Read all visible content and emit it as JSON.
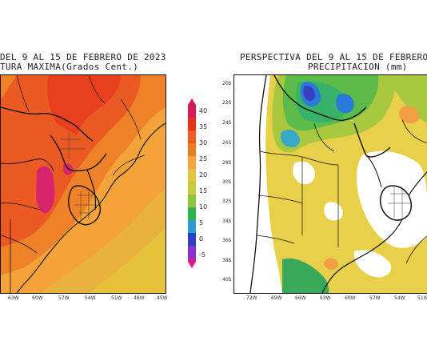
{
  "left_panel": {
    "title_line1": "DEL 9 AL 15 DE FEBRERO DE 2023",
    "title_line2": "TURA MAXIMA(Grados Cent.)",
    "lon_labels": [
      "63W",
      "60W",
      "57W",
      "54W",
      "51W",
      "48W",
      "45W"
    ]
  },
  "right_panel": {
    "title_line1": "PERSPECTIVA DEL 9 AL 15 DE FEBRERO",
    "title_line2": "PRECIPITACION (mm)",
    "lat_labels": [
      "20S",
      "22S",
      "24S",
      "26S",
      "28S",
      "30S",
      "32S",
      "34S",
      "36S",
      "38S",
      "40S"
    ],
    "lon_labels": [
      "72W",
      "69W",
      "66W",
      "63W",
      "60W",
      "57W",
      "54W",
      "51W"
    ]
  },
  "colorbar": {
    "ticks": [
      "40",
      "35",
      "30",
      "25",
      "20",
      "15",
      "10",
      "5",
      "0",
      "-5"
    ],
    "colors": [
      "#d81a5a",
      "#e8301c",
      "#f07a1e",
      "#f4a540",
      "#e8c43a",
      "#c8cc38",
      "#8cc63c",
      "#2fb24a",
      "#2a9ad6",
      "#2740c8",
      "#8a2fd0",
      "#e21b8a"
    ]
  }
}
